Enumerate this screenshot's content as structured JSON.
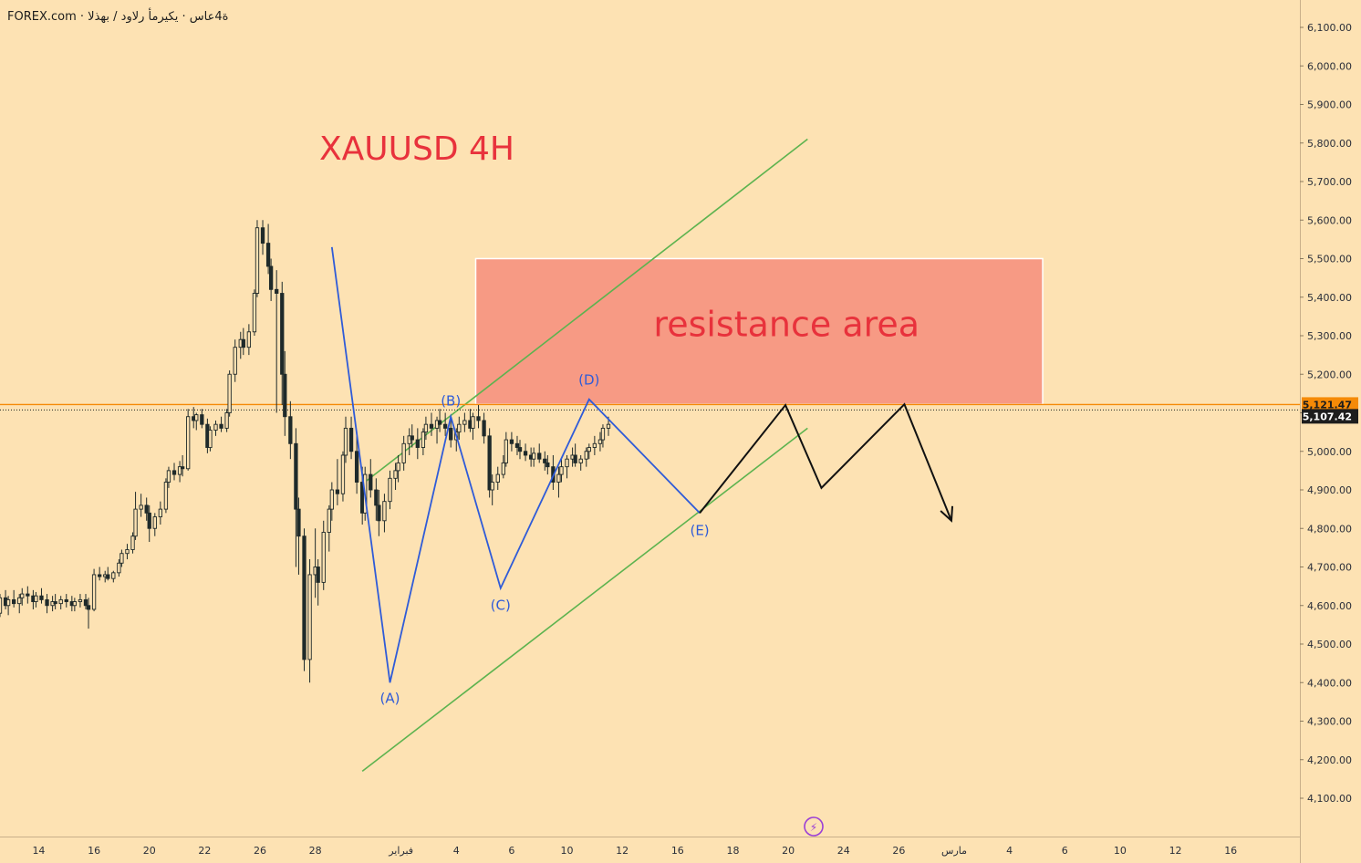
{
  "header": {
    "symbol_line": "FOREX.com · ة4عاس · يكيرمأ رلاود / بهذلا"
  },
  "colors": {
    "background": "#fde2b3",
    "candle": "#1f2a2a",
    "resistance_fill": "#f79a84",
    "trend_channel": "#5db34f",
    "wave_path": "#2f5bd8",
    "projection_path": "#111111",
    "last_price": "#f58a07",
    "current_price": "#1d1d1d",
    "title_text": "#e8323c"
  },
  "chart_data": {
    "type": "candlestick",
    "title": "XAUUSD 4H",
    "y_axis": {
      "min": 4050,
      "max": 6150,
      "ticks": [
        "6,100.00",
        "6,000.00",
        "5,900.00",
        "5,800.00",
        "5,700.00",
        "5,600.00",
        "5,500.00",
        "5,400.00",
        "5,300.00",
        "5,200.00",
        "5,100.00",
        "5,000.00",
        "4,900.00",
        "4,800.00",
        "4,700.00",
        "4,600.00",
        "4,500.00",
        "4,400.00",
        "4,300.00",
        "4,200.00",
        "4,100.00"
      ],
      "tick_values": [
        6100,
        6000,
        5900,
        5800,
        5700,
        5600,
        5500,
        5400,
        5300,
        5200,
        5100,
        5000,
        4900,
        4800,
        4700,
        4600,
        4500,
        4400,
        4300,
        4200,
        4100
      ]
    },
    "x_axis": {
      "unit": "day",
      "min_day": 12.6,
      "max_day": 59.6,
      "ticks": [
        {
          "label": "14",
          "day": 14
        },
        {
          "label": "16",
          "day": 16
        },
        {
          "label": "20",
          "day": 18
        },
        {
          "label": "22",
          "day": 20
        },
        {
          "label": "26",
          "day": 22
        },
        {
          "label": "28",
          "day": 24
        },
        {
          "label": "فبراير",
          "day": 27.1
        },
        {
          "label": "4",
          "day": 29.1
        },
        {
          "label": "6",
          "day": 31.1
        },
        {
          "label": "10",
          "day": 33.1
        },
        {
          "label": "12",
          "day": 35.1
        },
        {
          "label": "16",
          "day": 37.1
        },
        {
          "label": "18",
          "day": 39.1
        },
        {
          "label": "20",
          "day": 41.1
        },
        {
          "label": "24",
          "day": 43.1
        },
        {
          "label": "26",
          "day": 45.1
        },
        {
          "label": "مارس",
          "day": 47.1
        },
        {
          "label": "4",
          "day": 49.1
        },
        {
          "label": "6",
          "day": 51.1
        },
        {
          "label": "10",
          "day": 53.1
        },
        {
          "label": "12",
          "day": 55.1
        },
        {
          "label": "16",
          "day": 57.1
        }
      ]
    },
    "last_price": "5,121.47",
    "last_price_value": 5121.47,
    "current_price": "5,107.42",
    "current_price_value": 5107.42,
    "resistance_zone": {
      "label": "resistance area",
      "day_start": 29.8,
      "day_end": 50.3,
      "price_low": 5122,
      "price_high": 5500
    },
    "trend_channel": [
      {
        "name": "upper",
        "points": [
          [
            25.7,
            4915
          ],
          [
            41.8,
            5810
          ]
        ]
      },
      {
        "name": "lower",
        "points": [
          [
            25.7,
            4170
          ],
          [
            41.8,
            5060
          ]
        ]
      }
    ],
    "wave_path": [
      {
        "label": "(A)",
        "day": 26.7,
        "price": 4400,
        "label_dy": 22
      },
      {
        "label": "(B)",
        "day": 28.9,
        "price": 5090,
        "label_dy": -12
      },
      {
        "label": "(C)",
        "day": 30.7,
        "price": 4645,
        "label_dy": 24
      },
      {
        "label": "(D)",
        "day": 33.9,
        "price": 5135,
        "label_dy": -16
      },
      {
        "label": "(E)",
        "day": 37.9,
        "price": 4840,
        "label_dy": 24
      }
    ],
    "wave_path_start": {
      "day": 24.6,
      "price": 5530
    },
    "projection_path": [
      [
        37.9,
        4840
      ],
      [
        41.0,
        5120
      ],
      [
        42.3,
        4905
      ],
      [
        45.3,
        5122
      ],
      [
        47.0,
        4820
      ]
    ],
    "candles": [
      [
        12.6,
        4580,
        4630,
        4570,
        4620
      ],
      [
        12.8,
        4620,
        4640,
        4590,
        4600
      ],
      [
        12.9,
        4600,
        4625,
        4575,
        4615
      ],
      [
        13.1,
        4615,
        4640,
        4595,
        4605
      ],
      [
        13.3,
        4605,
        4630,
        4580,
        4620
      ],
      [
        13.4,
        4620,
        4645,
        4600,
        4630
      ],
      [
        13.6,
        4630,
        4650,
        4605,
        4625
      ],
      [
        13.8,
        4625,
        4640,
        4590,
        4610
      ],
      [
        13.9,
        4610,
        4635,
        4595,
        4625
      ],
      [
        14.1,
        4625,
        4645,
        4605,
        4615
      ],
      [
        14.3,
        4615,
        4630,
        4580,
        4600
      ],
      [
        14.5,
        4600,
        4625,
        4585,
        4610
      ],
      [
        14.6,
        4610,
        4630,
        4590,
        4605
      ],
      [
        14.8,
        4605,
        4625,
        4590,
        4615
      ],
      [
        15.0,
        4615,
        4630,
        4595,
        4610
      ],
      [
        15.2,
        4610,
        4625,
        4585,
        4600
      ],
      [
        15.3,
        4600,
        4620,
        4585,
        4610
      ],
      [
        15.5,
        4610,
        4630,
        4595,
        4615
      ],
      [
        15.7,
        4615,
        4630,
        4590,
        4600
      ],
      [
        15.8,
        4600,
        4620,
        4540,
        4590
      ],
      [
        16.0,
        4590,
        4695,
        4585,
        4680
      ],
      [
        16.2,
        4680,
        4700,
        4665,
        4675
      ],
      [
        16.4,
        4675,
        4690,
        4660,
        4680
      ],
      [
        16.5,
        4680,
        4700,
        4665,
        4670
      ],
      [
        16.7,
        4670,
        4690,
        4660,
        4685
      ],
      [
        16.9,
        4685,
        4720,
        4675,
        4710
      ],
      [
        17.0,
        4710,
        4745,
        4700,
        4735
      ],
      [
        17.2,
        4735,
        4760,
        4720,
        4745
      ],
      [
        17.4,
        4745,
        4790,
        4735,
        4780
      ],
      [
        17.5,
        4780,
        4895,
        4770,
        4850
      ],
      [
        17.7,
        4850,
        4890,
        4830,
        4860
      ],
      [
        17.9,
        4860,
        4880,
        4820,
        4840
      ],
      [
        18.0,
        4840,
        4860,
        4765,
        4800
      ],
      [
        18.2,
        4800,
        4840,
        4780,
        4830
      ],
      [
        18.4,
        4830,
        4870,
        4810,
        4850
      ],
      [
        18.6,
        4850,
        4930,
        4840,
        4920
      ],
      [
        18.7,
        4920,
        4960,
        4905,
        4950
      ],
      [
        18.9,
        4950,
        4970,
        4925,
        4940
      ],
      [
        19.1,
        4940,
        4975,
        4920,
        4960
      ],
      [
        19.2,
        4960,
        4990,
        4935,
        4955
      ],
      [
        19.4,
        4955,
        5110,
        4950,
        5090
      ],
      [
        19.6,
        5090,
        5115,
        5060,
        5080
      ],
      [
        19.7,
        5080,
        5100,
        5055,
        5095
      ],
      [
        19.9,
        5095,
        5110,
        5060,
        5070
      ],
      [
        20.1,
        5070,
        5085,
        4995,
        5010
      ],
      [
        20.2,
        5010,
        5065,
        5000,
        5055
      ],
      [
        20.4,
        5055,
        5080,
        5040,
        5070
      ],
      [
        20.6,
        5070,
        5090,
        5050,
        5060
      ],
      [
        20.8,
        5060,
        5110,
        5050,
        5100
      ],
      [
        20.9,
        5100,
        5210,
        5090,
        5200
      ],
      [
        21.1,
        5200,
        5290,
        5180,
        5270
      ],
      [
        21.3,
        5270,
        5310,
        5240,
        5290
      ],
      [
        21.4,
        5290,
        5320,
        5250,
        5270
      ],
      [
        21.6,
        5270,
        5330,
        5250,
        5310
      ],
      [
        21.8,
        5310,
        5420,
        5300,
        5410
      ],
      [
        21.9,
        5410,
        5600,
        5400,
        5580
      ],
      [
        22.1,
        5580,
        5600,
        5510,
        5540
      ],
      [
        22.3,
        5540,
        5590,
        5460,
        5480
      ],
      [
        22.4,
        5480,
        5500,
        5390,
        5420
      ],
      [
        22.6,
        5420,
        5470,
        5100,
        5410
      ],
      [
        22.8,
        5410,
        5440,
        5120,
        5200
      ],
      [
        22.9,
        5200,
        5260,
        5040,
        5090
      ],
      [
        23.1,
        5090,
        5130,
        4980,
        5020
      ],
      [
        23.3,
        5020,
        5060,
        4700,
        4850
      ],
      [
        23.4,
        4850,
        4880,
        4680,
        4780
      ],
      [
        23.6,
        4780,
        4800,
        4430,
        4460
      ],
      [
        23.8,
        4460,
        4720,
        4400,
        4680
      ],
      [
        24.0,
        4680,
        4800,
        4620,
        4700
      ],
      [
        24.1,
        4700,
        4720,
        4600,
        4660
      ],
      [
        24.3,
        4660,
        4820,
        4640,
        4790
      ],
      [
        24.5,
        4790,
        4860,
        4740,
        4850
      ],
      [
        24.6,
        4850,
        4920,
        4820,
        4900
      ],
      [
        24.8,
        4900,
        4980,
        4860,
        4890
      ],
      [
        25.0,
        4890,
        5000,
        4870,
        4990
      ],
      [
        25.1,
        4990,
        5090,
        4970,
        5060
      ],
      [
        25.3,
        5060,
        5090,
        4980,
        5000
      ],
      [
        25.5,
        5000,
        5050,
        4890,
        4920
      ],
      [
        25.7,
        4920,
        4960,
        4810,
        4840
      ],
      [
        25.8,
        4840,
        4960,
        4820,
        4940
      ],
      [
        26.0,
        4940,
        4980,
        4880,
        4900
      ],
      [
        26.2,
        4900,
        4930,
        4820,
        4860
      ],
      [
        26.3,
        4860,
        4900,
        4780,
        4820
      ],
      [
        26.5,
        4820,
        4890,
        4790,
        4870
      ],
      [
        26.7,
        4870,
        4950,
        4850,
        4930
      ],
      [
        26.9,
        4930,
        4970,
        4900,
        4950
      ],
      [
        27.0,
        4950,
        4990,
        4920,
        4970
      ],
      [
        27.2,
        4970,
        5040,
        4950,
        5020
      ],
      [
        27.4,
        5020,
        5060,
        4990,
        5040
      ],
      [
        27.5,
        5040,
        5070,
        5010,
        5030
      ],
      [
        27.7,
        5030,
        5060,
        4980,
        5010
      ],
      [
        27.9,
        5010,
        5060,
        4990,
        5050
      ],
      [
        28.0,
        5050,
        5090,
        5030,
        5070
      ],
      [
        28.2,
        5070,
        5100,
        5040,
        5060
      ],
      [
        28.4,
        5060,
        5090,
        5020,
        5080
      ],
      [
        28.5,
        5080,
        5110,
        5050,
        5070
      ],
      [
        28.7,
        5070,
        5100,
        5040,
        5060
      ],
      [
        28.9,
        5060,
        5090,
        5010,
        5030
      ],
      [
        29.1,
        5030,
        5060,
        5000,
        5050
      ],
      [
        29.2,
        5050,
        5090,
        5030,
        5070
      ],
      [
        29.4,
        5070,
        5100,
        5050,
        5080
      ],
      [
        29.6,
        5080,
        5110,
        5050,
        5060
      ],
      [
        29.7,
        5060,
        5100,
        5030,
        5090
      ],
      [
        29.9,
        5090,
        5120,
        5060,
        5080
      ],
      [
        30.1,
        5080,
        5100,
        5020,
        5040
      ],
      [
        30.3,
        5040,
        5060,
        4880,
        4900
      ],
      [
        30.4,
        4900,
        4940,
        4860,
        4920
      ],
      [
        30.6,
        4920,
        4960,
        4900,
        4940
      ],
      [
        30.8,
        4940,
        4990,
        4930,
        4970
      ],
      [
        30.9,
        4970,
        5050,
        4960,
        5030
      ],
      [
        31.1,
        5030,
        5050,
        5000,
        5020
      ],
      [
        31.3,
        5020,
        5040,
        4990,
        5010
      ],
      [
        31.4,
        5010,
        5030,
        4980,
        5000
      ],
      [
        31.6,
        5000,
        5020,
        4975,
        4990
      ],
      [
        31.8,
        4990,
        5010,
        4960,
        4980
      ],
      [
        31.9,
        4980,
        5010,
        4960,
        4995
      ],
      [
        32.1,
        4995,
        5020,
        4970,
        4980
      ],
      [
        32.3,
        4980,
        5000,
        4950,
        4970
      ],
      [
        32.4,
        4970,
        4990,
        4940,
        4960
      ],
      [
        32.6,
        4960,
        4990,
        4900,
        4920
      ],
      [
        32.8,
        4920,
        4960,
        4880,
        4940
      ],
      [
        32.9,
        4940,
        4980,
        4920,
        4960
      ],
      [
        33.1,
        4960,
        4990,
        4930,
        4980
      ],
      [
        33.3,
        4980,
        5010,
        4960,
        4990
      ],
      [
        33.4,
        4990,
        5020,
        4960,
        4970
      ],
      [
        33.6,
        4970,
        4990,
        4950,
        4980
      ],
      [
        33.8,
        4980,
        5010,
        4960,
        5000
      ],
      [
        33.9,
        5000,
        5020,
        4980,
        5010
      ],
      [
        34.1,
        5010,
        5040,
        4990,
        5020
      ],
      [
        34.3,
        5020,
        5050,
        5000,
        5030
      ],
      [
        34.4,
        5030,
        5070,
        5010,
        5060
      ],
      [
        34.6,
        5060,
        5090,
        5040,
        5070
      ]
    ]
  }
}
